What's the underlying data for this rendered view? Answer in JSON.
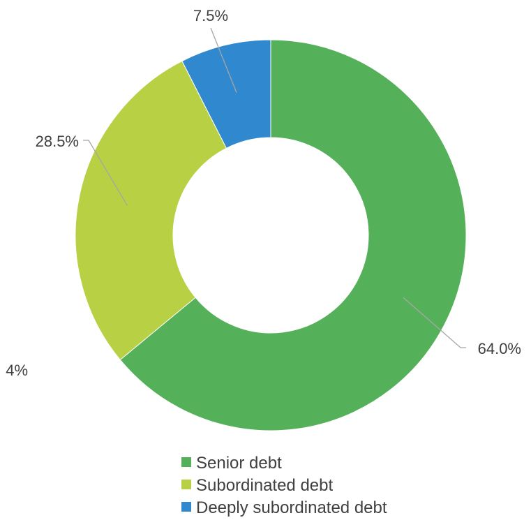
{
  "chart_data": {
    "type": "pie",
    "variant": "donut",
    "categories": [
      "Senior debt",
      "Subordinated debt",
      "Deeply subordinated debt"
    ],
    "values": [
      64.0,
      28.5,
      7.5
    ],
    "labels": [
      "64.0%",
      "28.5%",
      "7.5%"
    ],
    "unit": "%",
    "colors": [
      "#55b05a",
      "#b8d043",
      "#3089cf"
    ],
    "legend_position": "bottom-right",
    "clipped_label_fragment": "4%"
  }
}
